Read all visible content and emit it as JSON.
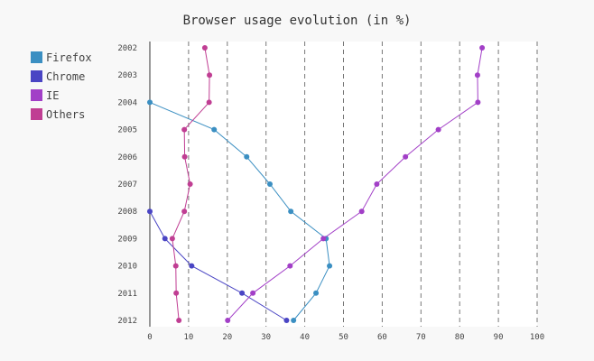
{
  "chart_data": {
    "type": "line",
    "orientation": "horizontal",
    "title": "Browser usage evolution (in %)",
    "categories": [
      "2002",
      "2003",
      "2004",
      "2005",
      "2006",
      "2007",
      "2008",
      "2009",
      "2010",
      "2011",
      "2012"
    ],
    "xlim": [
      0,
      100
    ],
    "xticks": [
      "0",
      "10",
      "20",
      "30",
      "40",
      "50",
      "60",
      "70",
      "80",
      "90",
      "100"
    ],
    "grid": true,
    "legend_position": "left",
    "series": [
      {
        "name": "Firefox",
        "color": "#3b8fc2",
        "values": [
          null,
          null,
          0,
          16.6,
          25,
          31,
          36.4,
          45.5,
          46.4,
          42.9,
          37.1
        ]
      },
      {
        "name": "Chrome",
        "color": "#4a45c4",
        "values": [
          null,
          null,
          null,
          null,
          null,
          null,
          0,
          3.9,
          10.8,
          23.8,
          35.3
        ]
      },
      {
        "name": "IE",
        "color": "#a23fc7",
        "values": [
          85.8,
          84.6,
          84.7,
          74.5,
          66,
          58.6,
          54.7,
          44.8,
          36.2,
          26.6,
          20.1
        ]
      },
      {
        "name": "Others",
        "color": "#c03e93",
        "values": [
          14.2,
          15.4,
          15.3,
          8.9,
          9,
          10.4,
          8.9,
          5.8,
          6.7,
          6.8,
          7.5
        ]
      }
    ]
  }
}
